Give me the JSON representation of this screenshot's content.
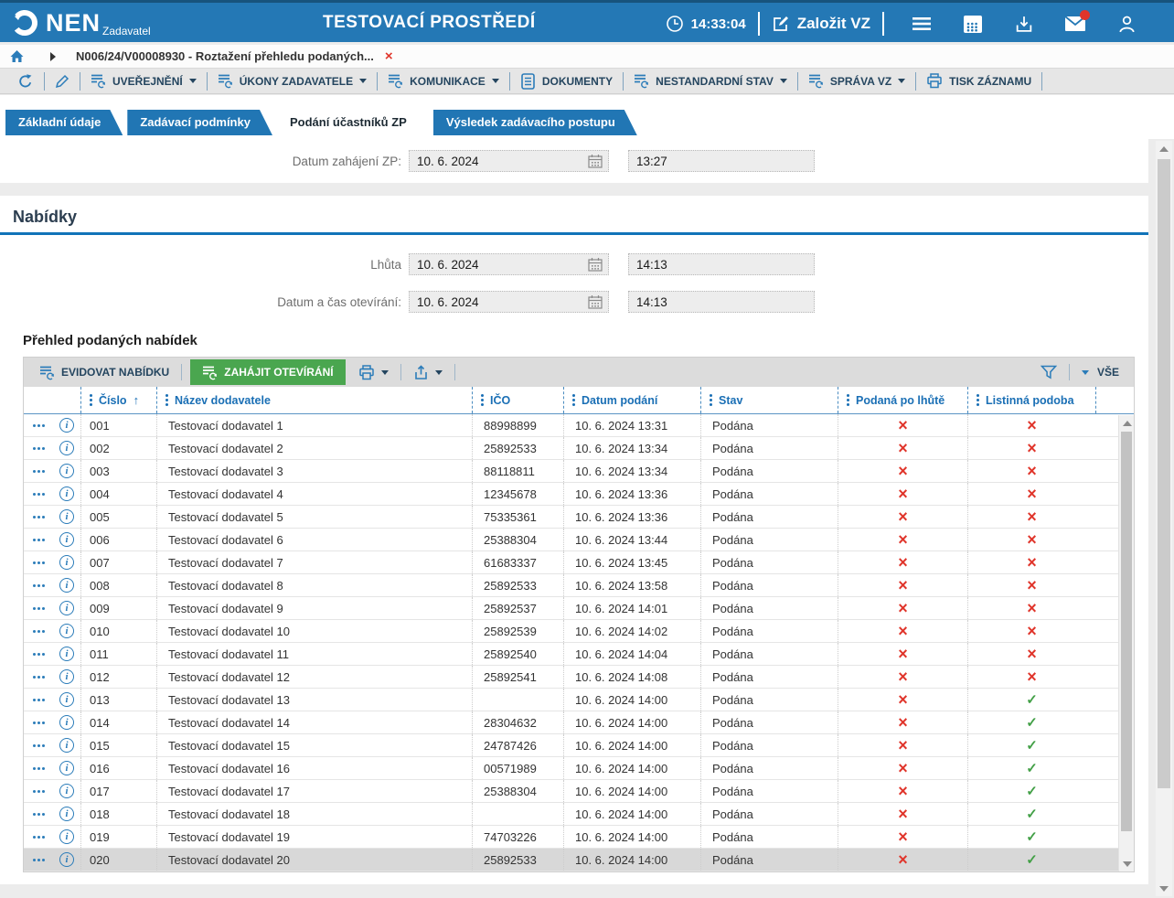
{
  "header": {
    "logo_text": "NEN",
    "logo_sub": "Zadavatel",
    "title": "TESTOVACÍ PROSTŘEDÍ",
    "time": "14:33:04",
    "create_button": "Založit VZ",
    "right_icons": [
      "clock-icon",
      "edit-icon",
      "menu-icon",
      "calendar-grid-icon",
      "inbox-icon",
      "mail-icon",
      "user-icon"
    ],
    "mail_has_notification": true,
    "colors": {
      "bar": "#2478b5",
      "notification": "#e0352b"
    }
  },
  "breadcrumb": {
    "item": "N006/24/V00008930 - Roztažení přehledu podaných...",
    "close_icon": "×"
  },
  "toolbar": {
    "icon_buttons": [
      "refresh-icon",
      "pencil-icon"
    ],
    "items": [
      {
        "label": "UVEŘEJNĚNÍ",
        "dropdown": true,
        "icon": "list-sync-icon"
      },
      {
        "label": "ÚKONY ZADAVATELE",
        "dropdown": true,
        "icon": "list-sync-icon"
      },
      {
        "label": "KOMUNIKACE",
        "dropdown": true,
        "icon": "list-sync-icon"
      },
      {
        "label": "DOKUMENTY",
        "dropdown": false,
        "icon": "document-icon"
      },
      {
        "label": "NESTANDARDNÍ STAV",
        "dropdown": true,
        "icon": "list-sync-icon"
      },
      {
        "label": "SPRÁVA VZ",
        "dropdown": true,
        "icon": "list-sync-icon"
      },
      {
        "label": "TISK ZÁZNAMU",
        "dropdown": false,
        "icon": "printer-icon"
      }
    ]
  },
  "tabs": [
    {
      "label": "Základní údaje",
      "active": false
    },
    {
      "label": "Zadávací podmínky",
      "active": false
    },
    {
      "label": "Podání účastníků ZP",
      "active": true
    },
    {
      "label": "Výsledek zadávacího postupu",
      "active": false
    }
  ],
  "form": {
    "start_label": "Datum zahájení ZP:",
    "start_date": "10. 6. 2024",
    "start_time": "13:27",
    "section_title": "Nabídky",
    "deadline_label": "Lhůta",
    "deadline_date": "10. 6. 2024",
    "deadline_time": "14:13",
    "opening_label": "Datum a čas otevírání:",
    "opening_date": "10. 6. 2024",
    "opening_time": "14:13"
  },
  "table": {
    "title": "Přehled podaných nabídek",
    "actions": {
      "register": "EVIDOVAT NABÍDKU",
      "open": "ZAHÁJIT OTEVÍRÁNÍ",
      "toolbar_icons": [
        "printer-icon",
        "export-icon",
        "filter-icon"
      ],
      "filter_all": "VŠE"
    },
    "columns": [
      "Číslo",
      "Název dodavatele",
      "IČO",
      "Datum podání",
      "Stav",
      "Podaná po lhůtě",
      "Listinná podoba"
    ],
    "sort": {
      "column": "Číslo",
      "direction": "asc",
      "glyph": "↑"
    },
    "marks": {
      "no_glyph": "×",
      "yes_glyph": "✓",
      "no_color": "#e0352b",
      "yes_color": "#43a047"
    },
    "rows": [
      {
        "cislo": "001",
        "nazev": "Testovací dodavatel 1",
        "ico": "88998899",
        "datum": "10. 6. 2024 13:31",
        "stav": "Podána",
        "po_lhute": false,
        "listinna": false,
        "selected": false
      },
      {
        "cislo": "002",
        "nazev": "Testovací dodavatel 2",
        "ico": "25892533",
        "datum": "10. 6. 2024 13:34",
        "stav": "Podána",
        "po_lhute": false,
        "listinna": false,
        "selected": false
      },
      {
        "cislo": "003",
        "nazev": "Testovací dodavatel 3",
        "ico": "88118811",
        "datum": "10. 6. 2024 13:34",
        "stav": "Podána",
        "po_lhute": false,
        "listinna": false,
        "selected": false
      },
      {
        "cislo": "004",
        "nazev": "Testovací dodavatel 4",
        "ico": "12345678",
        "datum": "10. 6. 2024 13:36",
        "stav": "Podána",
        "po_lhute": false,
        "listinna": false,
        "selected": false
      },
      {
        "cislo": "005",
        "nazev": "Testovací dodavatel 5",
        "ico": "75335361",
        "datum": "10. 6. 2024 13:36",
        "stav": "Podána",
        "po_lhute": false,
        "listinna": false,
        "selected": false
      },
      {
        "cislo": "006",
        "nazev": "Testovací dodavatel 6",
        "ico": "25388304",
        "datum": "10. 6. 2024 13:44",
        "stav": "Podána",
        "po_lhute": false,
        "listinna": false,
        "selected": false
      },
      {
        "cislo": "007",
        "nazev": "Testovací dodavatel 7",
        "ico": "61683337",
        "datum": "10. 6. 2024 13:45",
        "stav": "Podána",
        "po_lhute": false,
        "listinna": false,
        "selected": false
      },
      {
        "cislo": "008",
        "nazev": "Testovací dodavatel 8",
        "ico": "25892533",
        "datum": "10. 6. 2024 13:58",
        "stav": "Podána",
        "po_lhute": false,
        "listinna": false,
        "selected": false
      },
      {
        "cislo": "009",
        "nazev": "Testovací dodavatel 9",
        "ico": "25892537",
        "datum": "10. 6. 2024 14:01",
        "stav": "Podána",
        "po_lhute": false,
        "listinna": false,
        "selected": false
      },
      {
        "cislo": "010",
        "nazev": "Testovací dodavatel 10",
        "ico": "25892539",
        "datum": "10. 6. 2024 14:02",
        "stav": "Podána",
        "po_lhute": false,
        "listinna": false,
        "selected": false
      },
      {
        "cislo": "011",
        "nazev": "Testovací dodavatel 11",
        "ico": "25892540",
        "datum": "10. 6. 2024 14:04",
        "stav": "Podána",
        "po_lhute": false,
        "listinna": false,
        "selected": false
      },
      {
        "cislo": "012",
        "nazev": "Testovací dodavatel 12",
        "ico": "25892541",
        "datum": "10. 6. 2024 14:08",
        "stav": "Podána",
        "po_lhute": false,
        "listinna": false,
        "selected": false
      },
      {
        "cislo": "013",
        "nazev": "Testovací dodavatel 13",
        "ico": "",
        "datum": "10. 6. 2024 14:00",
        "stav": "Podána",
        "po_lhute": false,
        "listinna": true,
        "selected": false
      },
      {
        "cislo": "014",
        "nazev": "Testovací dodavatel 14",
        "ico": "28304632",
        "datum": "10. 6. 2024 14:00",
        "stav": "Podána",
        "po_lhute": false,
        "listinna": true,
        "selected": false
      },
      {
        "cislo": "015",
        "nazev": "Testovací dodavatel 15",
        "ico": "24787426",
        "datum": "10. 6. 2024 14:00",
        "stav": "Podána",
        "po_lhute": false,
        "listinna": true,
        "selected": false
      },
      {
        "cislo": "016",
        "nazev": "Testovací dodavatel 16",
        "ico": "00571989",
        "datum": "10. 6. 2024 14:00",
        "stav": "Podána",
        "po_lhute": false,
        "listinna": true,
        "selected": false
      },
      {
        "cislo": "017",
        "nazev": "Testovací dodavatel 17",
        "ico": "25388304",
        "datum": "10. 6. 2024 14:00",
        "stav": "Podána",
        "po_lhute": false,
        "listinna": true,
        "selected": false
      },
      {
        "cislo": "018",
        "nazev": "Testovací dodavatel 18",
        "ico": "",
        "datum": "10. 6. 2024 14:00",
        "stav": "Podána",
        "po_lhute": false,
        "listinna": true,
        "selected": false
      },
      {
        "cislo": "019",
        "nazev": "Testovací dodavatel 19",
        "ico": "74703226",
        "datum": "10. 6. 2024 14:00",
        "stav": "Podána",
        "po_lhute": false,
        "listinna": true,
        "selected": false
      },
      {
        "cislo": "020",
        "nazev": "Testovací dodavatel 20",
        "ico": "25892533",
        "datum": "10. 6. 2024 14:00",
        "stav": "Podána",
        "po_lhute": false,
        "listinna": true,
        "selected": true
      }
    ]
  }
}
